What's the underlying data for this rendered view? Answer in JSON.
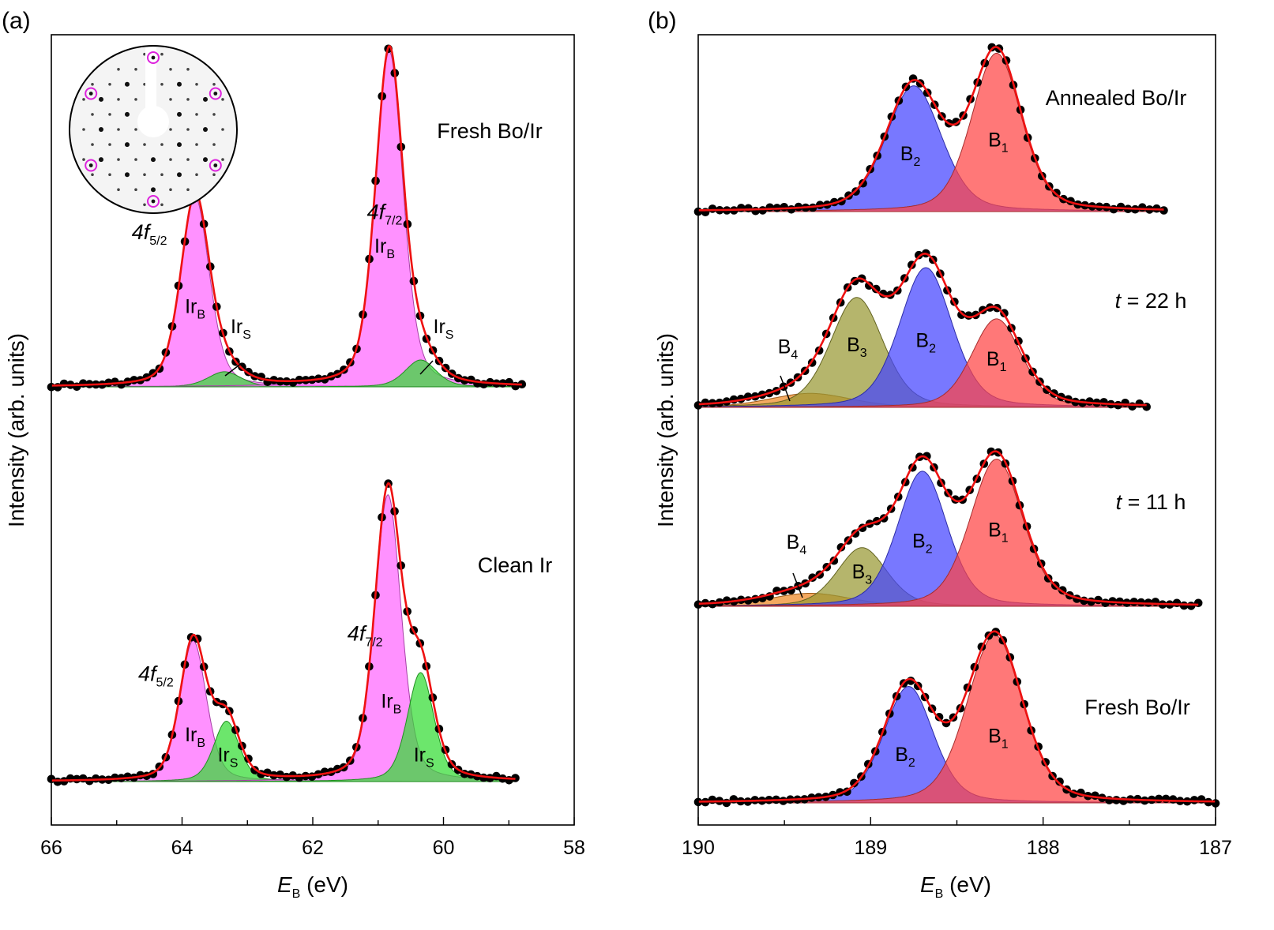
{
  "chart_data": [
    {
      "type": "line",
      "panel_label": "(a)",
      "title": "",
      "xlabel": "E",
      "xlabel_sub": "B",
      "xlabel_unit": " (eV)",
      "ylabel": "Intensity (arb. units)",
      "xlim": [
        66,
        58
      ],
      "xticks": [
        "66",
        "64",
        "62",
        "60",
        "58"
      ],
      "xtick_values": [
        66,
        64,
        62,
        60,
        58
      ],
      "inset": "LEED pattern",
      "spectra": [
        {
          "name": "Fresh Bo/Ir",
          "label": "Fresh Bo/Ir",
          "x_range": [
            66,
            58.8
          ],
          "background": 0,
          "peak_labels": [
            {
              "main": "4f",
              "sub": "5/2",
              "x": 64.5,
              "y": 0.44
            },
            {
              "main": "4f",
              "sub": "7/2",
              "x": 60.9,
              "y": 0.5
            }
          ],
          "component_labels": [
            {
              "main": "Ir",
              "sub": "B",
              "x": 63.8,
              "y": 0.22
            },
            {
              "main": "Ir",
              "sub": "S",
              "x": 63.1,
              "y": 0.16
            },
            {
              "main": "Ir",
              "sub": "B",
              "x": 60.9,
              "y": 0.4
            },
            {
              "main": "Ir",
              "sub": "S",
              "x": 60.0,
              "y": 0.16
            }
          ],
          "components": [
            {
              "name": "Ir_B 4f5/2",
              "color": "#ff66ff",
              "center": 63.8,
              "height": 0.565,
              "width": 0.26
            },
            {
              "name": "Ir_S 4f5/2",
              "color": "#33dd33",
              "center": 63.35,
              "height": 0.045,
              "width": 0.3
            },
            {
              "name": "Ir_B 4f7/2",
              "color": "#ff66ff",
              "center": 60.83,
              "height": 1.0,
              "width": 0.25
            },
            {
              "name": "Ir_S 4f7/2",
              "color": "#33dd33",
              "center": 60.35,
              "height": 0.08,
              "width": 0.28
            }
          ]
        },
        {
          "name": "Clean Ir",
          "label": "Clean Ir",
          "x_range": [
            66,
            58.9
          ],
          "background": 0,
          "peak_labels": [
            {
              "main": "4f",
              "sub": "5/2",
              "x": 64.4,
              "y": 0.3
            },
            {
              "main": "4f",
              "sub": "7/2",
              "x": 61.2,
              "y": 0.42
            }
          ],
          "component_labels": [
            {
              "main": "Ir",
              "sub": "B",
              "x": 63.8,
              "y": 0.12
            },
            {
              "main": "Ir",
              "sub": "S",
              "x": 63.3,
              "y": 0.06
            },
            {
              "main": "Ir",
              "sub": "B",
              "x": 60.8,
              "y": 0.22
            },
            {
              "main": "Ir",
              "sub": "S",
              "x": 60.3,
              "y": 0.06
            }
          ],
          "components": [
            {
              "name": "Ir_B 4f5/2",
              "color": "#ff66ff",
              "center": 63.83,
              "height": 0.42,
              "width": 0.24
            },
            {
              "name": "Ir_S 4f5/2",
              "color": "#33dd33",
              "center": 63.32,
              "height": 0.18,
              "width": 0.23
            },
            {
              "name": "Ir_B 4f7/2",
              "color": "#ff66ff",
              "center": 60.85,
              "height": 0.855,
              "width": 0.24
            },
            {
              "name": "Ir_S 4f7/2",
              "color": "#33dd33",
              "center": 60.35,
              "height": 0.325,
              "width": 0.24
            }
          ]
        }
      ]
    },
    {
      "type": "line",
      "panel_label": "(b)",
      "title": "",
      "xlabel": "E",
      "xlabel_sub": "B",
      "xlabel_unit": " (eV)",
      "ylabel": "Intensity (arb. units)",
      "xlim": [
        190,
        187
      ],
      "xticks": [
        "190",
        "189",
        "188",
        "187"
      ],
      "xtick_values": [
        190,
        189,
        188,
        187
      ],
      "spectra": [
        {
          "name": "Annealed Bo/Ir",
          "label_parts": [
            "Annealed Bo/Ir"
          ],
          "x_range": [
            190,
            187.3
          ],
          "components": [
            {
              "name": "B2",
              "color": "#4444ff",
              "center": 188.75,
              "height": 0.135,
              "width": 0.19
            },
            {
              "name": "B1",
              "color": "#ff4444",
              "center": 188.27,
              "height": 0.17,
              "width": 0.17
            }
          ],
          "component_labels": [
            {
              "main": "B",
              "sub": "2",
              "x": 188.77,
              "y": 0.055
            },
            {
              "main": "B",
              "sub": "1",
              "x": 188.26,
              "y": 0.07
            }
          ]
        },
        {
          "name": "t = 22 h",
          "label_parts": [
            "t",
            " = 22 h"
          ],
          "x_range": [
            190,
            187.4
          ],
          "components": [
            {
              "name": "B4",
              "color": "#ee8822",
              "center": 189.35,
              "height": 0.015,
              "width": 0.28
            },
            {
              "name": "B3",
              "color": "#999933",
              "center": 189.08,
              "height": 0.118,
              "width": 0.18
            },
            {
              "name": "B2",
              "color": "#4444ff",
              "center": 188.68,
              "height": 0.15,
              "width": 0.18
            },
            {
              "name": "B1",
              "color": "#ff4444",
              "center": 188.27,
              "height": 0.095,
              "width": 0.17
            }
          ],
          "component_labels": [
            {
              "main": "B",
              "sub": "4",
              "x": 189.48,
              "y": 0.058
            },
            {
              "main": "B",
              "sub": "3",
              "x": 189.08,
              "y": 0.06
            },
            {
              "main": "B",
              "sub": "2",
              "x": 188.68,
              "y": 0.065
            },
            {
              "main": "B",
              "sub": "1",
              "x": 188.27,
              "y": 0.045
            }
          ]
        },
        {
          "name": "t = 11 h",
          "label_parts": [
            "t",
            " = 11 h"
          ],
          "x_range": [
            190,
            187.1
          ],
          "components": [
            {
              "name": "B4",
              "color": "#ee8822",
              "center": 189.35,
              "height": 0.014,
              "width": 0.28
            },
            {
              "name": "B3",
              "color": "#999933",
              "center": 189.05,
              "height": 0.063,
              "width": 0.17
            },
            {
              "name": "B2",
              "color": "#4444ff",
              "center": 188.7,
              "height": 0.145,
              "width": 0.17
            },
            {
              "name": "B1",
              "color": "#ff4444",
              "center": 188.27,
              "height": 0.158,
              "width": 0.18
            }
          ],
          "component_labels": [
            {
              "main": "B",
              "sub": "4",
              "x": 189.43,
              "y": 0.062
            },
            {
              "main": "B",
              "sub": "3",
              "x": 189.05,
              "y": 0.03
            },
            {
              "main": "B",
              "sub": "2",
              "x": 188.7,
              "y": 0.063
            },
            {
              "main": "B",
              "sub": "1",
              "x": 188.26,
              "y": 0.075
            }
          ]
        },
        {
          "name": "Fresh Bo/Ir",
          "label_parts": [
            "Fresh Bo/Ir"
          ],
          "x_range": [
            190,
            187
          ],
          "components": [
            {
              "name": "B2",
              "color": "#4444ff",
              "center": 188.78,
              "height": 0.125,
              "width": 0.17
            },
            {
              "name": "B1",
              "color": "#ff4444",
              "center": 188.28,
              "height": 0.18,
              "width": 0.19
            }
          ],
          "component_labels": [
            {
              "main": "B",
              "sub": "2",
              "x": 188.8,
              "y": 0.045
            },
            {
              "main": "B",
              "sub": "1",
              "x": 188.26,
              "y": 0.065
            }
          ]
        }
      ]
    }
  ]
}
